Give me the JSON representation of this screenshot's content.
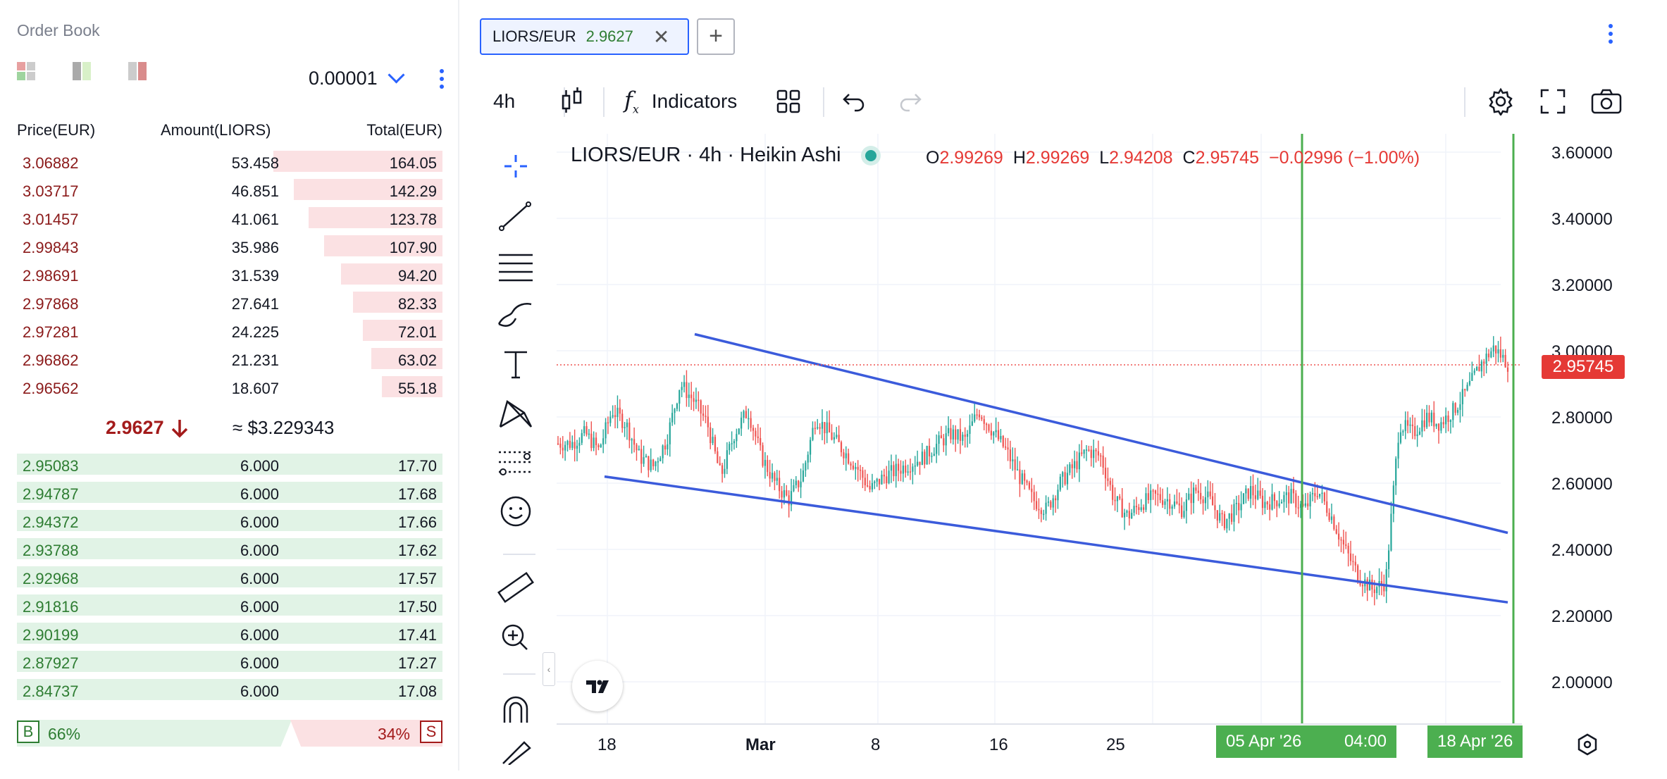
{
  "orderbook": {
    "title": "Order Book",
    "tick_size": "0.00001",
    "headers": {
      "price": "Price(EUR)",
      "amount": "Amount(LIORS)",
      "total": "Total(EUR)"
    },
    "asks": [
      {
        "price": "3.06882",
        "amount": "53.458",
        "total": "164.05",
        "depth": 1.0
      },
      {
        "price": "3.03717",
        "amount": "46.851",
        "total": "142.29",
        "depth": 0.88
      },
      {
        "price": "3.01457",
        "amount": "41.061",
        "total": "123.78",
        "depth": 0.79
      },
      {
        "price": "2.99843",
        "amount": "35.986",
        "total": "107.90",
        "depth": 0.7
      },
      {
        "price": "2.98691",
        "amount": "31.539",
        "total": "94.20",
        "depth": 0.6
      },
      {
        "price": "2.97868",
        "amount": "27.641",
        "total": "82.33",
        "depth": 0.53
      },
      {
        "price": "2.97281",
        "amount": "24.225",
        "total": "72.01",
        "depth": 0.47
      },
      {
        "price": "2.96862",
        "amount": "21.231",
        "total": "63.02",
        "depth": 0.42
      },
      {
        "price": "2.96562",
        "amount": "18.607",
        "total": "55.18",
        "depth": 0.36
      }
    ],
    "last_price": "2.9627",
    "last_usd": "≈ $3.229343",
    "bids": [
      {
        "price": "2.95083",
        "amount": "6.000",
        "total": "17.70"
      },
      {
        "price": "2.94787",
        "amount": "6.000",
        "total": "17.68"
      },
      {
        "price": "2.94372",
        "amount": "6.000",
        "total": "17.66"
      },
      {
        "price": "2.93788",
        "amount": "6.000",
        "total": "17.62"
      },
      {
        "price": "2.92968",
        "amount": "6.000",
        "total": "17.57"
      },
      {
        "price": "2.91816",
        "amount": "6.000",
        "total": "17.50"
      },
      {
        "price": "2.90199",
        "amount": "6.000",
        "total": "17.41"
      },
      {
        "price": "2.87927",
        "amount": "6.000",
        "total": "17.27"
      },
      {
        "price": "2.84737",
        "amount": "6.000",
        "total": "17.08"
      }
    ],
    "ratio": {
      "buy_label": "B",
      "buy_pct": "66%",
      "sell_label": "S",
      "sell_pct": "34%"
    }
  },
  "tabs": [
    {
      "symbol": "LIORS/EUR",
      "price": "2.9627"
    }
  ],
  "toolbar": {
    "interval": "4h",
    "indicators_label": "Indicators"
  },
  "chart": {
    "legend_title": "LIORS/EUR · 4h · Heikin Ashi",
    "ohlc": {
      "o_label": "O",
      "o": "2.99269",
      "h_label": "H",
      "h": "2.99269",
      "l_label": "L",
      "l": "2.94208",
      "c_label": "C",
      "c": "2.95745",
      "change": "−0.02996 (−1.00%)"
    },
    "current_price": "2.95745",
    "y_labels": [
      "3.60000",
      "3.40000",
      "3.20000",
      "3.00000",
      "2.80000",
      "2.60000",
      "2.40000",
      "2.20000",
      "2.00000"
    ],
    "x_labels": [
      "18",
      "Mar",
      "8",
      "16",
      "25"
    ],
    "markers": [
      "05 Apr '26",
      "04:00",
      "18 Apr '26"
    ],
    "colors": {
      "up": "#26a69a",
      "down": "#ef5350",
      "trend": "#3b5bdb",
      "marker": "#4caf50"
    }
  },
  "chart_data": {
    "type": "candlestick",
    "title": "LIORS/EUR · 4h · Heikin Ashi",
    "ylim": [
      1.95,
      3.65
    ],
    "x_tick_labels": [
      "18",
      "Mar",
      "8",
      "16",
      "25",
      "05 Apr '26",
      "18 Apr '26"
    ],
    "y_tick_labels": [
      2.0,
      2.2,
      2.4,
      2.6,
      2.8,
      3.0,
      3.2,
      3.4,
      3.6
    ],
    "price_anchors": [
      2.72,
      2.72,
      2.75,
      2.7,
      2.82,
      2.78,
      2.68,
      2.65,
      2.73,
      2.9,
      2.85,
      2.78,
      2.62,
      2.75,
      2.82,
      2.68,
      2.6,
      2.55,
      2.62,
      2.8,
      2.75,
      2.7,
      2.65,
      2.58,
      2.62,
      2.64,
      2.66,
      2.68,
      2.72,
      2.75,
      2.73,
      2.82,
      2.76,
      2.7,
      2.62,
      2.55,
      2.52,
      2.6,
      2.65,
      2.7,
      2.68,
      2.55,
      2.5,
      2.54,
      2.56,
      2.55,
      2.52,
      2.58,
      2.55,
      2.48,
      2.52,
      2.58,
      2.54,
      2.55,
      2.56,
      2.52,
      2.58,
      2.5,
      2.4,
      2.32,
      2.28,
      2.3,
      2.78,
      2.75,
      2.8,
      2.78,
      2.82,
      2.88,
      2.96,
      3.01,
      2.96
    ],
    "trendlines": [
      {
        "name": "upper",
        "from": {
          "x": "late Feb",
          "y": 3.05
        },
        "to": {
          "x": "18 Apr '26",
          "y": 2.45
        }
      },
      {
        "name": "lower",
        "from": {
          "x": "18",
          "y": 2.62
        },
        "to": {
          "x": "18 Apr '26",
          "y": 2.24
        }
      }
    ],
    "last_close": 2.95745
  }
}
